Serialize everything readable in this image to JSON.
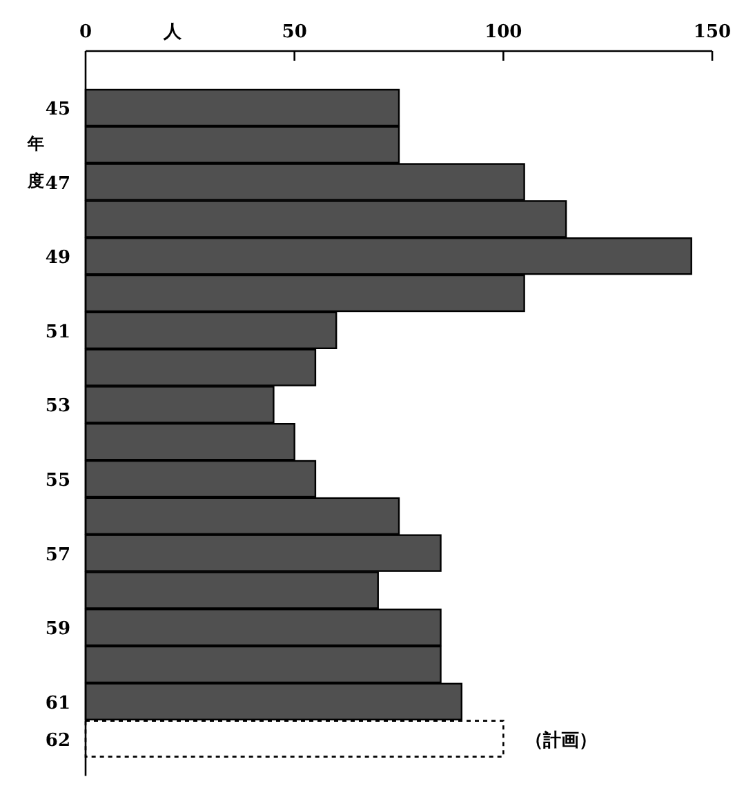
{
  "chart_data": {
    "type": "bar",
    "orientation": "horizontal",
    "xlabel": "人",
    "ylabel": "年度",
    "categories": [
      "45",
      null,
      "47",
      null,
      "49",
      null,
      "51",
      null,
      "53",
      null,
      "55",
      null,
      "57",
      null,
      "59",
      null,
      "61",
      "62"
    ],
    "values": [
      75,
      75,
      105,
      115,
      145,
      105,
      60,
      55,
      45,
      50,
      55,
      75,
      85,
      70,
      85,
      85,
      90,
      100
    ],
    "colors": [
      "#505050",
      "#505050",
      "#505050",
      "#505050",
      "#505050",
      "#505050",
      "#505050",
      "#505050",
      "#505050",
      "#505050",
      "#505050",
      "#505050",
      "#505050",
      "#505050",
      "#505050",
      "#505050",
      "#505050",
      "#ffffff"
    ],
    "xlim": [
      0,
      150
    ],
    "xticks": [
      0,
      50,
      100,
      150
    ],
    "annotations": [
      {
        "text": "（計画）",
        "x": 100,
        "y": "62"
      }
    ]
  }
}
